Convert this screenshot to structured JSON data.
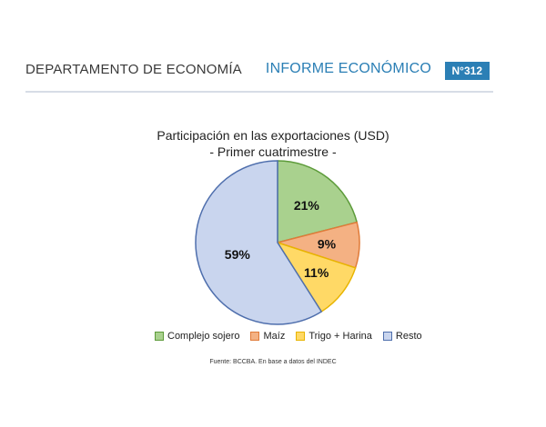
{
  "header": {
    "department": "DEPARTAMENTO DE ECONOMÍA",
    "report": "INFORME ECONÓMICO",
    "number": "N°312"
  },
  "chart_data": {
    "type": "pie",
    "title": "Participación en las exportaciones (USD)",
    "subtitle": "- Primer cuatrimestre -",
    "categories": [
      "Complejo sojero",
      "Maíz",
      "Trigo + Harina",
      "Resto"
    ],
    "values": [
      21,
      9,
      11,
      59
    ],
    "labels": [
      "21%",
      "9%",
      "11%",
      "59%"
    ],
    "colors": [
      "#a9d18e",
      "#f4b183",
      "#ffd966",
      "#c9d5ee"
    ],
    "stroke_colors": [
      "#5d9b3a",
      "#e07b39",
      "#e8b400",
      "#4f6fad"
    ],
    "legend_position": "bottom"
  },
  "source": "Fuente: BCCBA. En base a datos del INDEC"
}
